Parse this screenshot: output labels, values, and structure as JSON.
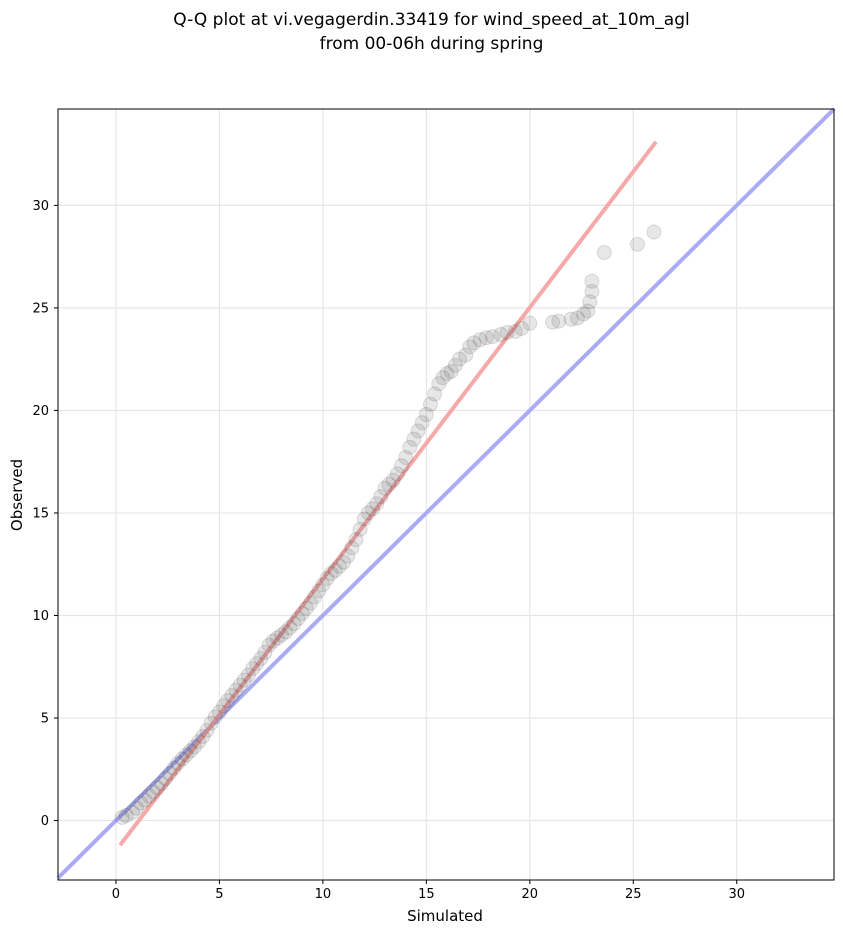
{
  "chart_data": {
    "type": "scatter",
    "title_line1": "Q-Q plot at vi.vegagerdin.33419 for wind_speed_at_10m_agl",
    "title_line2": "from 00-06h during spring",
    "xlabel": "Simulated",
    "ylabel": "Observed",
    "xlim": [
      -2.8,
      34.7
    ],
    "ylim": [
      -2.9,
      34.7
    ],
    "xticks": [
      0,
      5,
      10,
      15,
      20,
      25,
      30
    ],
    "yticks": [
      0,
      5,
      10,
      15,
      20,
      25,
      30
    ],
    "grid": true,
    "identity_line": {
      "color": "#aaaaf5",
      "from": [
        -2.8,
        -2.8
      ],
      "to": [
        34.7,
        34.7
      ]
    },
    "fit_line": {
      "color": "#f6a9a9",
      "from": [
        0.2,
        -1.2
      ],
      "to": [
        26.1,
        33.1
      ]
    },
    "points": [
      [
        0.3,
        0.15
      ],
      [
        0.5,
        0.25
      ],
      [
        0.8,
        0.4
      ],
      [
        1.0,
        0.6
      ],
      [
        1.2,
        0.85
      ],
      [
        1.4,
        1.0
      ],
      [
        1.6,
        1.2
      ],
      [
        1.8,
        1.4
      ],
      [
        2.0,
        1.6
      ],
      [
        2.2,
        1.8
      ],
      [
        2.4,
        2.05
      ],
      [
        2.6,
        2.3
      ],
      [
        2.8,
        2.55
      ],
      [
        3.0,
        2.8
      ],
      [
        3.2,
        3.0
      ],
      [
        3.4,
        3.2
      ],
      [
        3.6,
        3.4
      ],
      [
        3.8,
        3.6
      ],
      [
        4.0,
        3.85
      ],
      [
        4.2,
        4.1
      ],
      [
        4.4,
        4.4
      ],
      [
        4.6,
        4.75
      ],
      [
        4.8,
        5.05
      ],
      [
        5.0,
        5.3
      ],
      [
        5.2,
        5.6
      ],
      [
        5.4,
        5.85
      ],
      [
        5.6,
        6.1
      ],
      [
        5.8,
        6.35
      ],
      [
        6.0,
        6.6
      ],
      [
        6.2,
        6.85
      ],
      [
        6.4,
        7.1
      ],
      [
        6.6,
        7.4
      ],
      [
        6.8,
        7.65
      ],
      [
        7.0,
        7.9
      ],
      [
        7.2,
        8.2
      ],
      [
        7.4,
        8.55
      ],
      [
        7.6,
        8.75
      ],
      [
        7.8,
        8.9
      ],
      [
        8.0,
        9.05
      ],
      [
        8.2,
        9.2
      ],
      [
        8.4,
        9.4
      ],
      [
        8.6,
        9.6
      ],
      [
        8.8,
        9.85
      ],
      [
        9.0,
        10.1
      ],
      [
        9.2,
        10.35
      ],
      [
        9.4,
        10.6
      ],
      [
        9.6,
        10.9
      ],
      [
        9.8,
        11.2
      ],
      [
        10.0,
        11.5
      ],
      [
        10.2,
        11.8
      ],
      [
        10.4,
        12.05
      ],
      [
        10.6,
        12.2
      ],
      [
        10.8,
        12.4
      ],
      [
        11.0,
        12.6
      ],
      [
        11.2,
        12.9
      ],
      [
        11.4,
        13.3
      ],
      [
        11.6,
        13.7
      ],
      [
        11.8,
        14.2
      ],
      [
        12.0,
        14.7
      ],
      [
        12.2,
        15.0
      ],
      [
        12.4,
        15.2
      ],
      [
        12.6,
        15.45
      ],
      [
        12.8,
        15.8
      ],
      [
        13.0,
        16.2
      ],
      [
        13.2,
        16.4
      ],
      [
        13.4,
        16.6
      ],
      [
        13.6,
        16.9
      ],
      [
        13.8,
        17.3
      ],
      [
        14.0,
        17.7
      ],
      [
        14.2,
        18.2
      ],
      [
        14.4,
        18.6
      ],
      [
        14.6,
        19.0
      ],
      [
        14.8,
        19.4
      ],
      [
        15.0,
        19.8
      ],
      [
        15.2,
        20.3
      ],
      [
        15.4,
        20.8
      ],
      [
        15.6,
        21.3
      ],
      [
        15.8,
        21.6
      ],
      [
        16.0,
        21.8
      ],
      [
        16.2,
        21.9
      ],
      [
        16.4,
        22.2
      ],
      [
        16.6,
        22.5
      ],
      [
        16.9,
        22.7
      ],
      [
        17.1,
        23.1
      ],
      [
        17.3,
        23.3
      ],
      [
        17.6,
        23.45
      ],
      [
        17.9,
        23.55
      ],
      [
        18.2,
        23.6
      ],
      [
        18.6,
        23.7
      ],
      [
        18.9,
        23.8
      ],
      [
        19.3,
        23.85
      ],
      [
        19.6,
        24.0
      ],
      [
        20.0,
        24.25
      ],
      [
        21.1,
        24.3
      ],
      [
        21.4,
        24.35
      ],
      [
        22.0,
        24.45
      ],
      [
        22.3,
        24.5
      ],
      [
        22.6,
        24.7
      ],
      [
        22.8,
        24.85
      ],
      [
        22.9,
        25.3
      ],
      [
        23.0,
        25.8
      ],
      [
        23.0,
        26.3
      ],
      [
        23.6,
        27.7
      ],
      [
        25.2,
        28.1
      ],
      [
        26.0,
        28.7
      ]
    ]
  }
}
